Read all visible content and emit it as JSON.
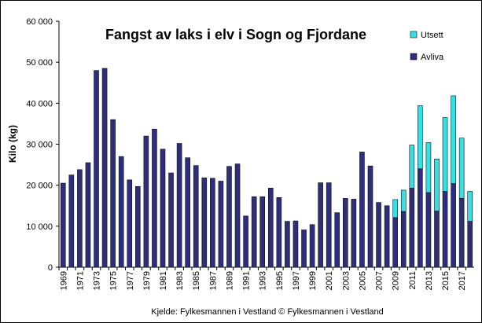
{
  "chart_data": {
    "type": "stacked-bar",
    "title": "Fangst av laks i elv i Sogn og Fjordane",
    "y_label": "Kilo (kg)",
    "source": "Kjelde: Fylkesmannen i Vestland © Fylkesmannen i Vestland",
    "categories": [
      "1969",
      null,
      "1971",
      null,
      "1973",
      null,
      "1975",
      null,
      "1977",
      null,
      "1979",
      null,
      "1981",
      null,
      "1983",
      null,
      "1985",
      null,
      "1987",
      null,
      "1989",
      null,
      "1991",
      null,
      "1993",
      null,
      "1995",
      null,
      "1997",
      null,
      "1999",
      null,
      "2001",
      null,
      "2003",
      null,
      "2005",
      null,
      "2007",
      null,
      "2009",
      null,
      "2011",
      null,
      "2013",
      null,
      "2015",
      null,
      "2017",
      null
    ],
    "series": [
      {
        "name": "Avliva",
        "color": "#2e2e7c",
        "values": [
          20500,
          22500,
          23800,
          25500,
          48000,
          48500,
          36000,
          27000,
          21300,
          19700,
          32000,
          33700,
          28800,
          23000,
          30200,
          26700,
          24800,
          21800,
          21700,
          21000,
          24600,
          25200,
          12500,
          17200,
          17200,
          19300,
          17000,
          11200,
          11300,
          9100,
          10400,
          20600,
          20600,
          13300,
          16800,
          16600,
          28100,
          24700,
          15800,
          15000,
          12100,
          13600,
          19300,
          24000,
          18200,
          13700,
          18500,
          20400,
          16800,
          11200
        ]
      },
      {
        "name": "Utsett",
        "color": "#33e0e6",
        "values": [
          0,
          0,
          0,
          0,
          0,
          0,
          0,
          0,
          0,
          0,
          0,
          0,
          0,
          0,
          0,
          0,
          0,
          0,
          0,
          0,
          0,
          0,
          0,
          0,
          0,
          0,
          0,
          0,
          0,
          0,
          0,
          0,
          0,
          0,
          0,
          0,
          0,
          0,
          0,
          0,
          4400,
          5200,
          10500,
          15400,
          12200,
          12700,
          18000,
          21400,
          14700,
          7300
        ]
      }
    ],
    "ylim": [
      0,
      60000
    ],
    "yticks": [
      {
        "value": 0,
        "label": "0"
      },
      {
        "value": 10000,
        "label": "10 000"
      },
      {
        "value": 20000,
        "label": "20 000"
      },
      {
        "value": 30000,
        "label": "30 000"
      },
      {
        "value": 40000,
        "label": "40 000"
      },
      {
        "value": 50000,
        "label": "50 000"
      },
      {
        "value": 60000,
        "label": "60 000"
      }
    ],
    "legend": "top-right"
  }
}
